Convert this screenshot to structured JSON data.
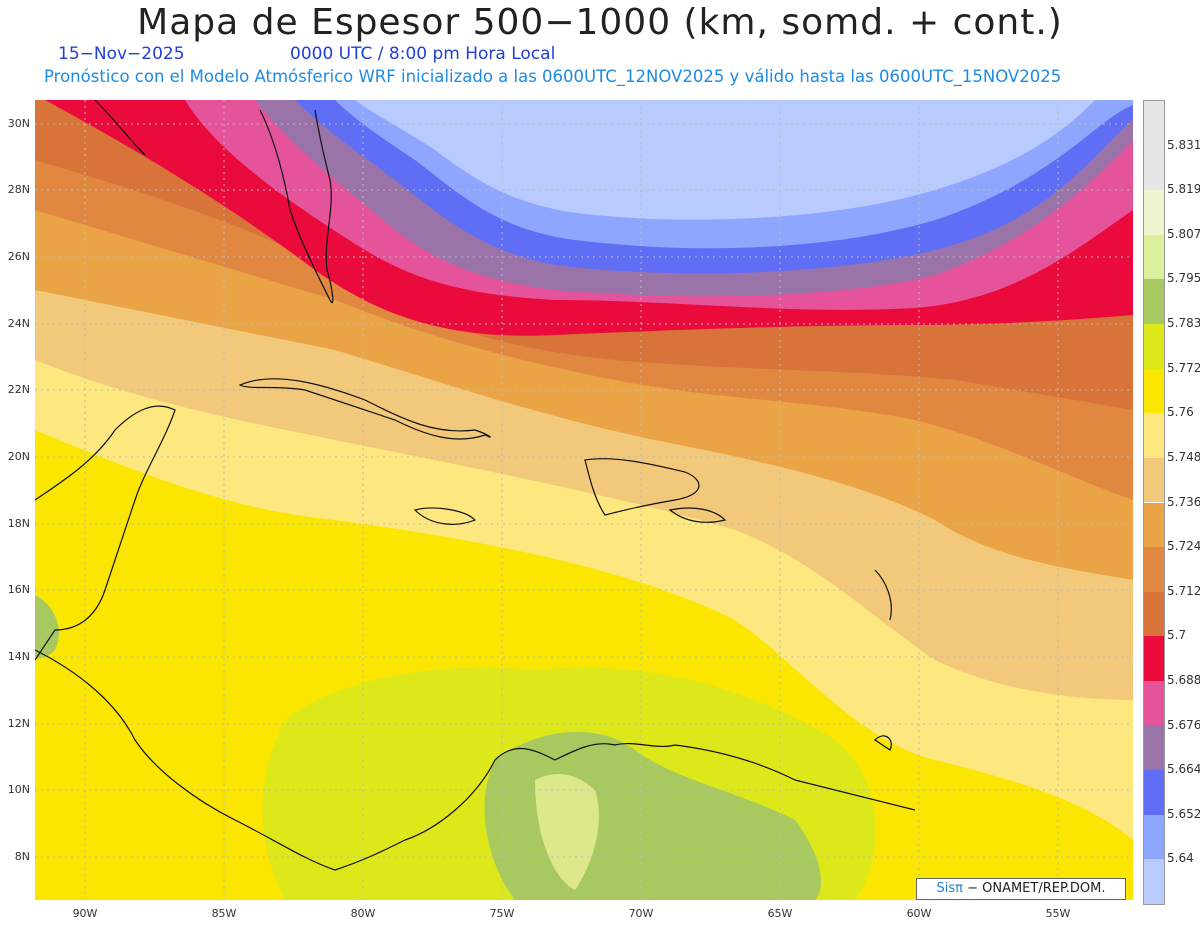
{
  "title": "Mapa de Espesor 500−1000 (km, somd. + cont.)",
  "date": "15−Nov−2025",
  "time": "0000 UTC / 8:00 pm Hora Local",
  "info": "Pronóstico con el Modelo Atmósferico WRF inicializado a las 0600UTC_12NOV2025 y válido hasta las  0600UTC_15NOV2025",
  "credit": {
    "logo": "Sisπ",
    "text": " − ONAMET/REP.DOM."
  },
  "lat_labels": [
    "30N",
    "28N",
    "26N",
    "24N",
    "22N",
    "20N",
    "18N",
    "16N",
    "14N",
    "12N",
    "10N",
    "8N"
  ],
  "lon_labels": [
    "90W",
    "85W",
    "80W",
    "75W",
    "70W",
    "65W",
    "60W",
    "55W"
  ],
  "legend": {
    "labels": [
      "5.831",
      "5.819",
      "5.807",
      "5.795",
      "5.783",
      "5.772",
      "5.76",
      "5.748",
      "5.736",
      "5.724",
      "5.712",
      "5.7",
      "5.688",
      "5.676",
      "5.664",
      "5.652",
      "5.64"
    ],
    "colors": [
      "#e6e6e6",
      "#eef5cf",
      "#dcef9a",
      "#a8c860",
      "#dde81a",
      "#fae600",
      "#fde880",
      "#f2c97a",
      "#eaa445",
      "#e08840",
      "#d8733a",
      "#ea0a3c",
      "#e5549a",
      "#9a74a8",
      "#5f6ef5",
      "#8fa6ff",
      "#b9caff"
    ]
  }
}
